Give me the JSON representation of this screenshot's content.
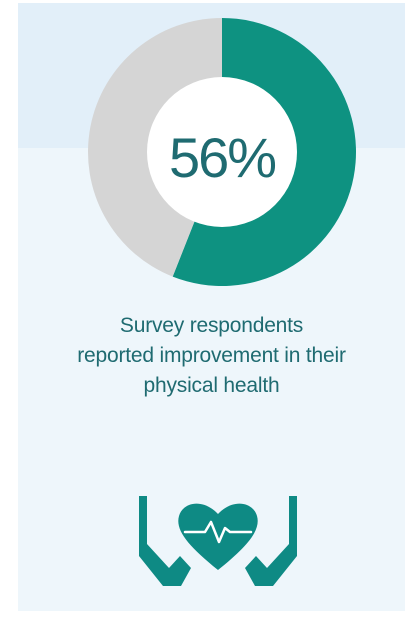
{
  "chart_data": {
    "type": "pie",
    "value_label": "56%",
    "values": [
      56,
      44
    ],
    "colors": {
      "primary": "#0e9281",
      "remainder": "#d5d5d5",
      "center": "#ffffff",
      "text": "#1f6b71"
    }
  },
  "caption": {
    "line1": "Survey respondents",
    "line2": "reported improvement in their",
    "line3": "physical health"
  },
  "icon": {
    "name": "hands-holding-heart-icon",
    "color": "#0e8a84"
  }
}
